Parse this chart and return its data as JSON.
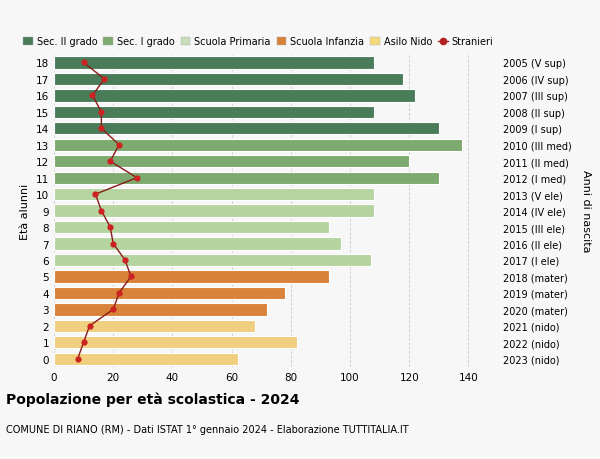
{
  "ages": [
    18,
    17,
    16,
    15,
    14,
    13,
    12,
    11,
    10,
    9,
    8,
    7,
    6,
    5,
    4,
    3,
    2,
    1,
    0
  ],
  "anni": [
    "2005 (V sup)",
    "2006 (IV sup)",
    "2007 (III sup)",
    "2008 (II sup)",
    "2009 (I sup)",
    "2010 (III med)",
    "2011 (II med)",
    "2012 (I med)",
    "2013 (V ele)",
    "2014 (IV ele)",
    "2015 (III ele)",
    "2016 (II ele)",
    "2017 (I ele)",
    "2018 (mater)",
    "2019 (mater)",
    "2020 (mater)",
    "2021 (nido)",
    "2022 (nido)",
    "2023 (nido)"
  ],
  "bar_values": [
    108,
    118,
    122,
    108,
    130,
    138,
    120,
    130,
    108,
    108,
    93,
    97,
    107,
    93,
    78,
    72,
    68,
    82,
    62
  ],
  "bar_colors": [
    "#4a7c59",
    "#4a7c59",
    "#4a7c59",
    "#4a7c59",
    "#4a7c59",
    "#7daa6e",
    "#7daa6e",
    "#7daa6e",
    "#b5d4a0",
    "#b5d4a0",
    "#b5d4a0",
    "#b5d4a0",
    "#b5d4a0",
    "#d9823a",
    "#d9823a",
    "#d9823a",
    "#f0d080",
    "#f0d080",
    "#f0d080"
  ],
  "stranieri": [
    10,
    17,
    13,
    16,
    16,
    22,
    19,
    28,
    14,
    16,
    19,
    20,
    24,
    26,
    22,
    20,
    12,
    10,
    8
  ],
  "title": "Popolazione per età scolastica - 2024",
  "subtitle": "COMUNE DI RIANO (RM) - Dati ISTAT 1° gennaio 2024 - Elaborazione TUTTITALIA.IT",
  "ylabel_left": "Età alunni",
  "ylabel_right": "Anni di nascita",
  "legend_labels": [
    "Sec. II grado",
    "Sec. I grado",
    "Scuola Primaria",
    "Scuola Infanzia",
    "Asilo Nido",
    "Stranieri"
  ],
  "legend_colors": [
    "#4a7c59",
    "#7daa6e",
    "#c8ddb8",
    "#d9823a",
    "#f5d97a",
    "#b22222"
  ],
  "bg_color": "#f7f7f7",
  "bar_edge_color": "white",
  "xlim": [
    0,
    150
  ],
  "xticks": [
    0,
    20,
    40,
    60,
    80,
    100,
    120,
    140
  ]
}
